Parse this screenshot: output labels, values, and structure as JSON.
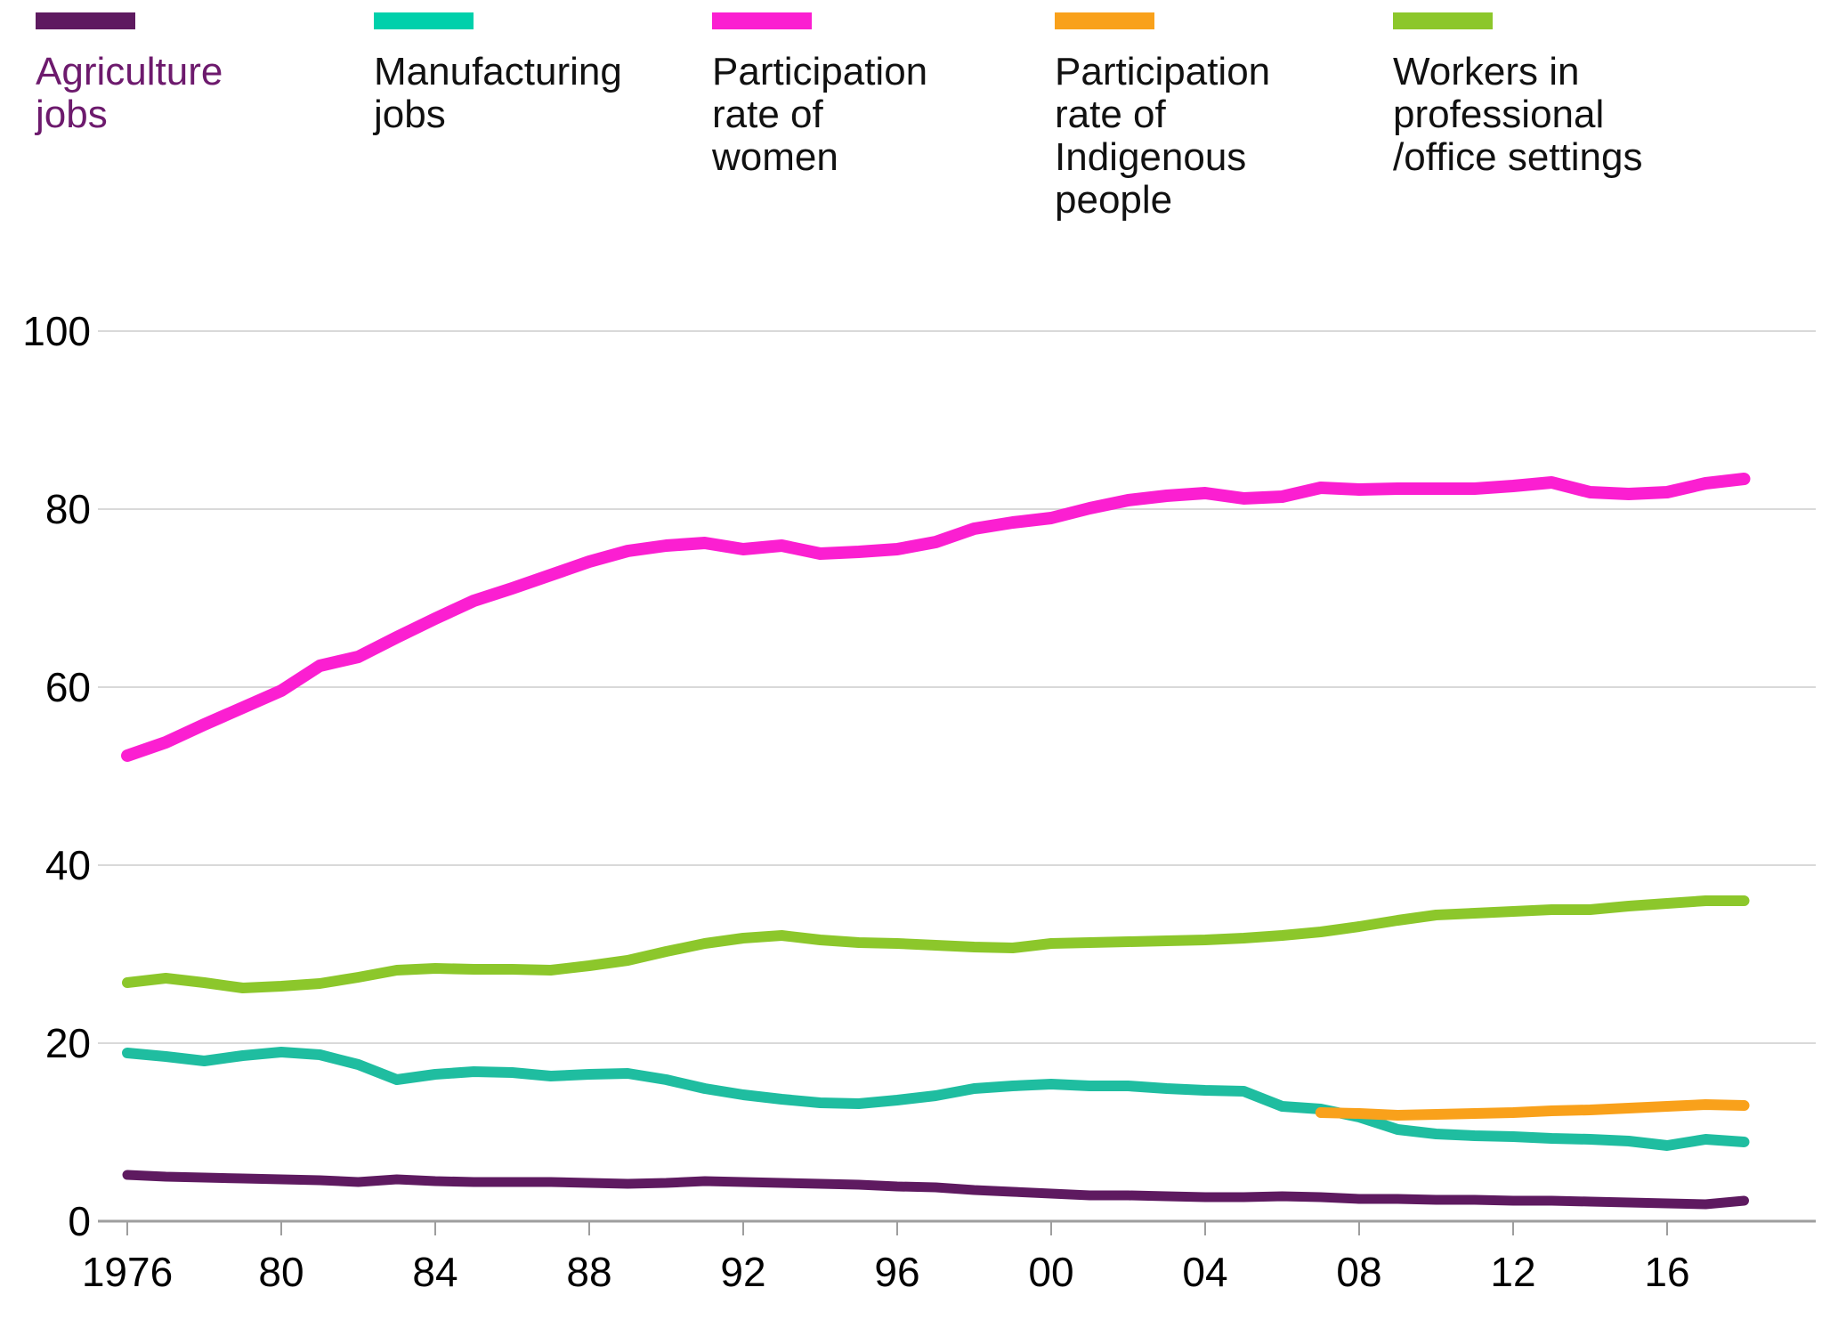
{
  "legend": {
    "items": [
      {
        "label": "Agriculture\njobs",
        "color": "#5e1a60",
        "text_color": "#6d1a6d"
      },
      {
        "label": "Manufacturing\njobs",
        "color": "#00d0ab",
        "text_color": "#111111"
      },
      {
        "label": "Participation\nrate of\nwomen",
        "color": "#fb1fd1",
        "text_color": "#111111"
      },
      {
        "label": "Participation\nrate of\nIndigenous\npeople",
        "color": "#f9a11b",
        "text_color": "#111111"
      },
      {
        "label": "Workers in\nprofessional\n/office settings",
        "color": "#8cc72b",
        "text_color": "#111111"
      }
    ]
  },
  "chart_data": {
    "type": "line",
    "title": "",
    "xlabel": "",
    "ylabel": "",
    "x_range": [
      1976,
      2018
    ],
    "ylim": [
      0,
      100
    ],
    "grid": true,
    "legend_position": "top",
    "x": [
      1976,
      1977,
      1978,
      1979,
      1980,
      1981,
      1982,
      1983,
      1984,
      1985,
      1986,
      1987,
      1988,
      1989,
      1990,
      1991,
      1992,
      1993,
      1994,
      1995,
      1996,
      1997,
      1998,
      1999,
      2000,
      2001,
      2002,
      2003,
      2004,
      2005,
      2006,
      2007,
      2008,
      2009,
      2010,
      2011,
      2012,
      2013,
      2014,
      2015,
      2016,
      2017,
      2018
    ],
    "yticks": [
      0,
      20,
      40,
      60,
      80,
      100
    ],
    "xticks": [
      {
        "x": 1976,
        "label": "1976"
      },
      {
        "x": 1980,
        "label": "80"
      },
      {
        "x": 1984,
        "label": "84"
      },
      {
        "x": 1988,
        "label": "88"
      },
      {
        "x": 1992,
        "label": "92"
      },
      {
        "x": 1996,
        "label": "96"
      },
      {
        "x": 2000,
        "label": "00"
      },
      {
        "x": 2004,
        "label": "04"
      },
      {
        "x": 2008,
        "label": "08"
      },
      {
        "x": 2012,
        "label": "12"
      },
      {
        "x": 2016,
        "label": "16"
      }
    ],
    "series": [
      {
        "name": "Agriculture jobs",
        "color": "#5e1a60",
        "stroke_width": 11,
        "values": [
          5.2,
          5.0,
          4.9,
          4.8,
          4.7,
          4.6,
          4.4,
          4.7,
          4.5,
          4.4,
          4.4,
          4.4,
          4.3,
          4.2,
          4.3,
          4.5,
          4.4,
          4.3,
          4.2,
          4.1,
          3.9,
          3.8,
          3.5,
          3.3,
          3.1,
          2.9,
          2.9,
          2.8,
          2.7,
          2.7,
          2.8,
          2.7,
          2.5,
          2.5,
          2.4,
          2.4,
          2.3,
          2.3,
          2.2,
          2.1,
          2.0,
          1.9,
          2.3
        ]
      },
      {
        "name": "Manufacturing jobs",
        "color": "#1fbda0",
        "stroke_width": 12,
        "values": [
          18.9,
          18.5,
          18.0,
          18.6,
          19.0,
          18.7,
          17.6,
          15.9,
          16.5,
          16.8,
          16.7,
          16.3,
          16.5,
          16.6,
          15.9,
          14.9,
          14.2,
          13.7,
          13.3,
          13.2,
          13.6,
          14.1,
          14.9,
          15.2,
          15.4,
          15.2,
          15.2,
          14.9,
          14.7,
          14.6,
          12.9,
          12.6,
          11.7,
          10.3,
          9.8,
          9.6,
          9.5,
          9.3,
          9.2,
          9.0,
          8.5,
          9.2,
          8.9
        ]
      },
      {
        "name": "Participation rate of Indigenous people",
        "color": "#f9a11b",
        "stroke_width": 12,
        "values": [
          null,
          null,
          null,
          null,
          null,
          null,
          null,
          null,
          null,
          null,
          null,
          null,
          null,
          null,
          null,
          null,
          null,
          null,
          null,
          null,
          null,
          null,
          null,
          null,
          null,
          null,
          null,
          null,
          null,
          null,
          null,
          12.2,
          12.1,
          11.9,
          12.0,
          12.1,
          12.2,
          12.4,
          12.5,
          12.7,
          12.9,
          13.1,
          13.0
        ]
      },
      {
        "name": "Workers in professional/office settings",
        "color": "#8cc72b",
        "stroke_width": 12,
        "values": [
          26.8,
          27.3,
          26.8,
          26.2,
          26.4,
          26.7,
          27.4,
          28.2,
          28.4,
          28.3,
          28.3,
          28.2,
          28.7,
          29.3,
          30.3,
          31.2,
          31.8,
          32.1,
          31.6,
          31.3,
          31.2,
          31.0,
          30.8,
          30.7,
          31.2,
          31.3,
          31.4,
          31.5,
          31.6,
          31.8,
          32.1,
          32.5,
          33.1,
          33.8,
          34.4,
          34.6,
          34.8,
          35.0,
          35.0,
          35.4,
          35.7,
          36.0,
          36.0
        ]
      },
      {
        "name": "Participation rate of women",
        "color": "#fb1fd1",
        "stroke_width": 14,
        "values": [
          52.3,
          53.8,
          55.8,
          57.7,
          59.6,
          62.4,
          63.4,
          65.6,
          67.7,
          69.7,
          71.1,
          72.6,
          74.1,
          75.3,
          75.9,
          76.2,
          75.5,
          75.9,
          75.0,
          75.2,
          75.5,
          76.3,
          77.8,
          78.5,
          79.0,
          80.1,
          81.0,
          81.5,
          81.8,
          81.2,
          81.4,
          82.4,
          82.2,
          82.3,
          82.3,
          82.3,
          82.6,
          83.0,
          81.9,
          81.7,
          81.9,
          82.9,
          83.4
        ]
      }
    ],
    "axis_color": "#9e9e9e",
    "gridline_color": "#d9d9d9",
    "tick_label_color": "#000000",
    "tick_font_size": 46
  }
}
